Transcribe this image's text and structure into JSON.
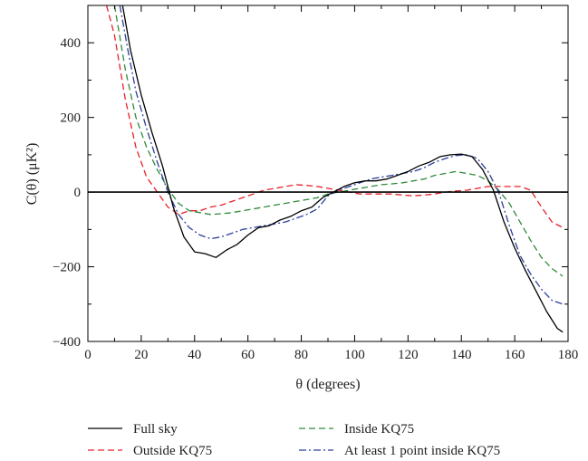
{
  "chart_data": {
    "type": "line",
    "xlabel": "θ (degrees)",
    "ylabel": "C(θ) (μK²)",
    "xlim": [
      0,
      180
    ],
    "ylim": [
      -400,
      500
    ],
    "xticks": [
      0,
      20,
      40,
      60,
      80,
      100,
      120,
      140,
      160,
      180
    ],
    "yticks": [
      -400,
      -200,
      0,
      200,
      400
    ],
    "ytick_labels": [
      "−400",
      "−200",
      "0",
      "200",
      "400"
    ],
    "grid": false,
    "zero_line": true,
    "legend_position": "bottom, outside plot, two columns",
    "series": [
      {
        "name": "Full sky",
        "color": "#000000",
        "dash": "solid",
        "x": [
          13,
          16,
          20,
          24,
          28,
          32,
          36,
          40,
          44,
          48,
          52,
          56,
          60,
          64,
          68,
          72,
          76,
          80,
          84,
          88,
          92,
          96,
          100,
          104,
          108,
          112,
          116,
          120,
          124,
          128,
          132,
          136,
          140,
          144,
          148,
          152,
          156,
          160,
          164,
          168,
          172,
          176,
          178
        ],
        "y": [
          500,
          380,
          260,
          160,
          70,
          -40,
          -120,
          -160,
          -165,
          -175,
          -155,
          -140,
          -115,
          -95,
          -90,
          -75,
          -65,
          -50,
          -40,
          -15,
          0,
          15,
          25,
          30,
          30,
          35,
          45,
          55,
          70,
          80,
          95,
          100,
          102,
          95,
          60,
          5,
          -80,
          -150,
          -210,
          -265,
          -320,
          -365,
          -375
        ]
      },
      {
        "name": "Outside KQ75",
        "color": "#e8202a",
        "dash": "7,4",
        "x": [
          7,
          10,
          14,
          18,
          22,
          26,
          30,
          34,
          38,
          42,
          46,
          50,
          54,
          58,
          62,
          66,
          70,
          74,
          78,
          82,
          86,
          90,
          94,
          98,
          102,
          106,
          110,
          114,
          118,
          122,
          126,
          130,
          134,
          138,
          142,
          146,
          150,
          154,
          158,
          162,
          166,
          170,
          174,
          178
        ],
        "y": [
          500,
          420,
          250,
          120,
          40,
          0,
          -40,
          -60,
          -50,
          -50,
          -40,
          -35,
          -25,
          -15,
          -5,
          5,
          10,
          15,
          20,
          18,
          15,
          10,
          5,
          0,
          -5,
          -5,
          -5,
          -5,
          -8,
          -10,
          -8,
          -5,
          0,
          3,
          5,
          10,
          15,
          15,
          15,
          15,
          5,
          -40,
          -80,
          -95
        ]
      },
      {
        "name": "Inside KQ75",
        "color": "#2e8b3a",
        "dash": "7,4",
        "x": [
          10,
          14,
          18,
          22,
          26,
          30,
          34,
          38,
          42,
          46,
          50,
          54,
          58,
          62,
          66,
          70,
          74,
          78,
          82,
          86,
          90,
          94,
          98,
          102,
          106,
          110,
          114,
          118,
          122,
          126,
          130,
          134,
          138,
          142,
          146,
          150,
          154,
          158,
          162,
          166,
          170,
          174,
          178
        ],
        "y": [
          500,
          330,
          200,
          120,
          60,
          10,
          -30,
          -50,
          -55,
          -60,
          -58,
          -55,
          -50,
          -45,
          -40,
          -35,
          -30,
          -25,
          -20,
          -15,
          -5,
          0,
          5,
          10,
          15,
          20,
          22,
          25,
          30,
          35,
          45,
          50,
          55,
          50,
          45,
          30,
          5,
          -30,
          -80,
          -130,
          -175,
          -205,
          -225
        ]
      },
      {
        "name": "At least 1 point inside KQ75",
        "color": "#2b3f9e",
        "dash": "8,3,2,3",
        "x": [
          12,
          15,
          18,
          22,
          26,
          30,
          34,
          38,
          42,
          46,
          50,
          54,
          58,
          62,
          66,
          70,
          74,
          78,
          82,
          86,
          90,
          94,
          98,
          102,
          106,
          110,
          114,
          118,
          122,
          126,
          130,
          134,
          138,
          142,
          146,
          150,
          154,
          158,
          162,
          166,
          170,
          174,
          178
        ],
        "y": [
          500,
          380,
          270,
          170,
          80,
          0,
          -60,
          -95,
          -115,
          -125,
          -120,
          -110,
          -100,
          -95,
          -90,
          -85,
          -80,
          -70,
          -60,
          -45,
          -10,
          5,
          15,
          25,
          35,
          40,
          45,
          50,
          55,
          65,
          80,
          90,
          98,
          100,
          90,
          55,
          0,
          -90,
          -170,
          -220,
          -260,
          -290,
          -300
        ]
      }
    ]
  }
}
